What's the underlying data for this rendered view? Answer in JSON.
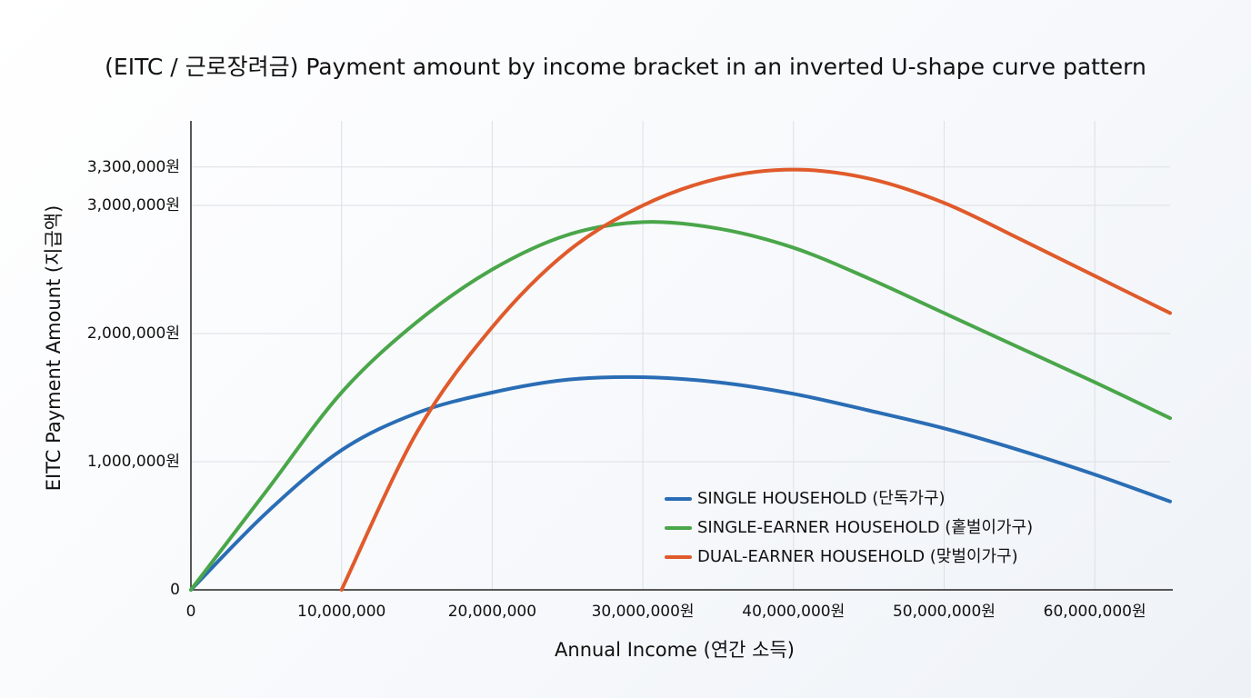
{
  "chart_data": {
    "type": "line",
    "title": "(EITC / 근로장려금) Payment amount by income bracket in an inverted U-shape curve pattern",
    "x_label": "Annual Income (연간 소득)",
    "y_label": "EITC Payment Amount (지급액)",
    "x": [
      0,
      5000000,
      10000000,
      15000000,
      20000000,
      25000000,
      30000000,
      35000000,
      40000000,
      45000000,
      50000000,
      55000000,
      60000000,
      65000000
    ],
    "series": [
      {
        "name": "SINGLE HOUSEHOLD (단독가구)",
        "color": "#2a6db5",
        "values": [
          0,
          600000,
          1090000,
          1380000,
          1540000,
          1640000,
          1660000,
          1620000,
          1530000,
          1400000,
          1260000,
          1090000,
          900000,
          690000
        ]
      },
      {
        "name": "SINGLE-EARNER HOUSEHOLD (홑벌이가구)",
        "color": "#4aa64a",
        "values": [
          0,
          770000,
          1540000,
          2090000,
          2500000,
          2770000,
          2870000,
          2820000,
          2670000,
          2430000,
          2160000,
          1890000,
          1620000,
          1340000
        ]
      },
      {
        "name": "DUAL-EARNER HOUSEHOLD (맞벌이가구)",
        "color": "#e05a2b",
        "values": [
          null,
          null,
          0,
          1230000,
          2050000,
          2640000,
          3000000,
          3210000,
          3280000,
          3210000,
          3020000,
          2740000,
          2450000,
          2160000
        ]
      }
    ],
    "xlim": [
      0,
      65000000
    ],
    "ylim": [
      0,
      3660000
    ],
    "xticks": [
      0,
      {
        "value": 10000000,
        "label": "10,000,000"
      },
      {
        "value": 20000000,
        "label": "20,000,000"
      },
      {
        "value": 30000000,
        "label": "30,000,000원"
      },
      {
        "value": 40000000,
        "label": "40,000,000원"
      },
      {
        "value": 50000000,
        "label": "50,000,000원"
      },
      {
        "value": 60000000,
        "label": "60,000,000원"
      }
    ],
    "yticks": [
      0,
      {
        "value": 1000000,
        "label": "1,000,000원"
      },
      {
        "value": 2000000,
        "label": "2,000,000원"
      },
      {
        "value": 3000000,
        "label": "3,000,000원"
      },
      {
        "value": 3300000,
        "label": "3,300,000원"
      }
    ],
    "grid": true,
    "legend": "lower right"
  }
}
